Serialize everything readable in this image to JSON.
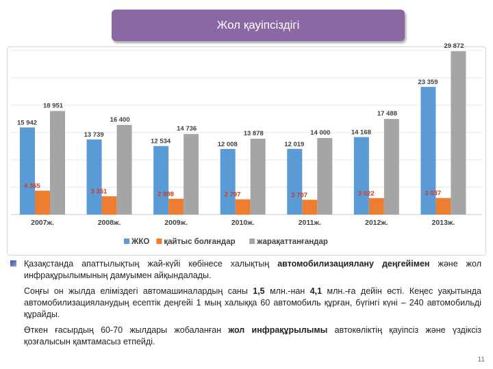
{
  "header": {
    "title": "Жол қауіпсіздігі"
  },
  "chart_data": {
    "type": "bar",
    "categories": [
      "2007ж.",
      "2008ж.",
      "2009ж.",
      "2010ж.",
      "2011ж.",
      "2012ж.",
      "2013ж."
    ],
    "series": [
      {
        "name": "ЖКО",
        "color": "#5b9bd5",
        "values": [
          15942,
          13739,
          12534,
          12008,
          12019,
          14168,
          23359
        ],
        "labels": [
          "15 942",
          "13 739",
          "12 534",
          "12 008",
          "12 019",
          "14 168",
          "23 359"
        ]
      },
      {
        "name": "қайтыс болғандар",
        "color": "#ed7d31",
        "values": [
          4365,
          3351,
          2898,
          2797,
          2707,
          3022,
          3037
        ],
        "labels": [
          "4 365",
          "3 351",
          "2 898",
          "2 797",
          "2 707",
          "3 022",
          "3 037"
        ]
      },
      {
        "name": "жарақаттанғандар",
        "color": "#a5a5a5",
        "values": [
          18951,
          16400,
          14736,
          13878,
          14000,
          17488,
          29872
        ],
        "labels": [
          "18 951",
          "16 400",
          "14 736",
          "13 878",
          "14 000",
          "17 488",
          "29 872"
        ]
      }
    ],
    "ylim": [
      0,
      30000
    ],
    "grid": true,
    "legend": "bottom"
  },
  "text": {
    "p1_a": "Қазақстанда апаттылықтың жай-күйі көбінесе халықтың ",
    "p1_b": "автомобилизациялану деңгейімен",
    "p1_c": " және жол инфрақұрылымының дамуымен айқындалады.",
    "p2_a": "Соңғы он жылда еліміздегі автомашиналардың саны ",
    "p2_b": "1,5",
    "p2_c": " млн.-нан ",
    "p2_d": "4,1",
    "p2_e": " млн.-ға дейін өсті. Кеңес уақытында автомобилизацияланудың есептік деңгейі 1 мың халыққа 60 автомобиль құрған, бүгінгі күні – 240 автомобильді құрайды.",
    "p3_a": "Өткен ғасырдың 60-70 жылдары жобаланған ",
    "p3_b": "жол инфрақұрылымы",
    "p3_c": " автокөліктің қауіпсіз және үздіксіз қозғалысын қамтамасыз етпейді."
  },
  "page_number": "11"
}
